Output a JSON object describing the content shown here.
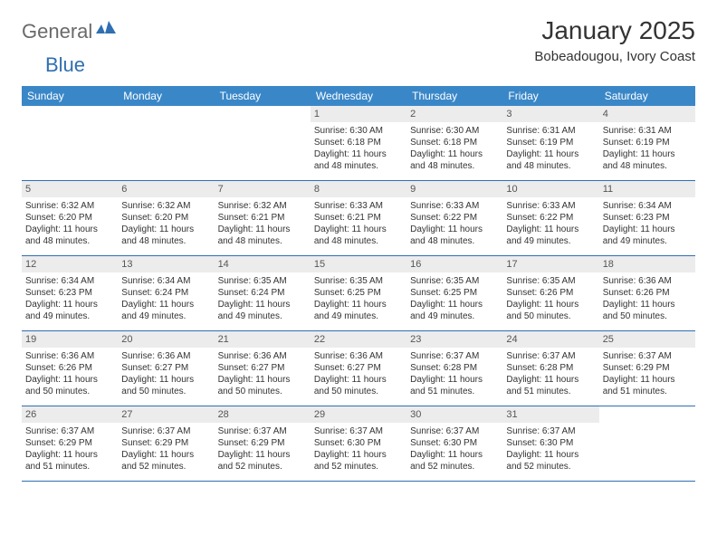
{
  "brand": {
    "part1": "General",
    "part2": "Blue"
  },
  "title": "January 2025",
  "location": "Bobeadougou, Ivory Coast",
  "colors": {
    "header_bg": "#3a87c8",
    "header_text": "#ffffff",
    "rule": "#2f6fb2",
    "daynum_bg": "#ececec",
    "text": "#333333",
    "brand_gray": "#6a6a6a",
    "brand_blue": "#2f6fb2"
  },
  "weekdays": [
    "Sunday",
    "Monday",
    "Tuesday",
    "Wednesday",
    "Thursday",
    "Friday",
    "Saturday"
  ],
  "weeks": [
    [
      {
        "n": "",
        "sunrise": "",
        "sunset": "",
        "daylight": ""
      },
      {
        "n": "",
        "sunrise": "",
        "sunset": "",
        "daylight": ""
      },
      {
        "n": "",
        "sunrise": "",
        "sunset": "",
        "daylight": ""
      },
      {
        "n": "1",
        "sunrise": "Sunrise: 6:30 AM",
        "sunset": "Sunset: 6:18 PM",
        "daylight": "Daylight: 11 hours and 48 minutes."
      },
      {
        "n": "2",
        "sunrise": "Sunrise: 6:30 AM",
        "sunset": "Sunset: 6:18 PM",
        "daylight": "Daylight: 11 hours and 48 minutes."
      },
      {
        "n": "3",
        "sunrise": "Sunrise: 6:31 AM",
        "sunset": "Sunset: 6:19 PM",
        "daylight": "Daylight: 11 hours and 48 minutes."
      },
      {
        "n": "4",
        "sunrise": "Sunrise: 6:31 AM",
        "sunset": "Sunset: 6:19 PM",
        "daylight": "Daylight: 11 hours and 48 minutes."
      }
    ],
    [
      {
        "n": "5",
        "sunrise": "Sunrise: 6:32 AM",
        "sunset": "Sunset: 6:20 PM",
        "daylight": "Daylight: 11 hours and 48 minutes."
      },
      {
        "n": "6",
        "sunrise": "Sunrise: 6:32 AM",
        "sunset": "Sunset: 6:20 PM",
        "daylight": "Daylight: 11 hours and 48 minutes."
      },
      {
        "n": "7",
        "sunrise": "Sunrise: 6:32 AM",
        "sunset": "Sunset: 6:21 PM",
        "daylight": "Daylight: 11 hours and 48 minutes."
      },
      {
        "n": "8",
        "sunrise": "Sunrise: 6:33 AM",
        "sunset": "Sunset: 6:21 PM",
        "daylight": "Daylight: 11 hours and 48 minutes."
      },
      {
        "n": "9",
        "sunrise": "Sunrise: 6:33 AM",
        "sunset": "Sunset: 6:22 PM",
        "daylight": "Daylight: 11 hours and 48 minutes."
      },
      {
        "n": "10",
        "sunrise": "Sunrise: 6:33 AM",
        "sunset": "Sunset: 6:22 PM",
        "daylight": "Daylight: 11 hours and 49 minutes."
      },
      {
        "n": "11",
        "sunrise": "Sunrise: 6:34 AM",
        "sunset": "Sunset: 6:23 PM",
        "daylight": "Daylight: 11 hours and 49 minutes."
      }
    ],
    [
      {
        "n": "12",
        "sunrise": "Sunrise: 6:34 AM",
        "sunset": "Sunset: 6:23 PM",
        "daylight": "Daylight: 11 hours and 49 minutes."
      },
      {
        "n": "13",
        "sunrise": "Sunrise: 6:34 AM",
        "sunset": "Sunset: 6:24 PM",
        "daylight": "Daylight: 11 hours and 49 minutes."
      },
      {
        "n": "14",
        "sunrise": "Sunrise: 6:35 AM",
        "sunset": "Sunset: 6:24 PM",
        "daylight": "Daylight: 11 hours and 49 minutes."
      },
      {
        "n": "15",
        "sunrise": "Sunrise: 6:35 AM",
        "sunset": "Sunset: 6:25 PM",
        "daylight": "Daylight: 11 hours and 49 minutes."
      },
      {
        "n": "16",
        "sunrise": "Sunrise: 6:35 AM",
        "sunset": "Sunset: 6:25 PM",
        "daylight": "Daylight: 11 hours and 49 minutes."
      },
      {
        "n": "17",
        "sunrise": "Sunrise: 6:35 AM",
        "sunset": "Sunset: 6:26 PM",
        "daylight": "Daylight: 11 hours and 50 minutes."
      },
      {
        "n": "18",
        "sunrise": "Sunrise: 6:36 AM",
        "sunset": "Sunset: 6:26 PM",
        "daylight": "Daylight: 11 hours and 50 minutes."
      }
    ],
    [
      {
        "n": "19",
        "sunrise": "Sunrise: 6:36 AM",
        "sunset": "Sunset: 6:26 PM",
        "daylight": "Daylight: 11 hours and 50 minutes."
      },
      {
        "n": "20",
        "sunrise": "Sunrise: 6:36 AM",
        "sunset": "Sunset: 6:27 PM",
        "daylight": "Daylight: 11 hours and 50 minutes."
      },
      {
        "n": "21",
        "sunrise": "Sunrise: 6:36 AM",
        "sunset": "Sunset: 6:27 PM",
        "daylight": "Daylight: 11 hours and 50 minutes."
      },
      {
        "n": "22",
        "sunrise": "Sunrise: 6:36 AM",
        "sunset": "Sunset: 6:27 PM",
        "daylight": "Daylight: 11 hours and 50 minutes."
      },
      {
        "n": "23",
        "sunrise": "Sunrise: 6:37 AM",
        "sunset": "Sunset: 6:28 PM",
        "daylight": "Daylight: 11 hours and 51 minutes."
      },
      {
        "n": "24",
        "sunrise": "Sunrise: 6:37 AM",
        "sunset": "Sunset: 6:28 PM",
        "daylight": "Daylight: 11 hours and 51 minutes."
      },
      {
        "n": "25",
        "sunrise": "Sunrise: 6:37 AM",
        "sunset": "Sunset: 6:29 PM",
        "daylight": "Daylight: 11 hours and 51 minutes."
      }
    ],
    [
      {
        "n": "26",
        "sunrise": "Sunrise: 6:37 AM",
        "sunset": "Sunset: 6:29 PM",
        "daylight": "Daylight: 11 hours and 51 minutes."
      },
      {
        "n": "27",
        "sunrise": "Sunrise: 6:37 AM",
        "sunset": "Sunset: 6:29 PM",
        "daylight": "Daylight: 11 hours and 52 minutes."
      },
      {
        "n": "28",
        "sunrise": "Sunrise: 6:37 AM",
        "sunset": "Sunset: 6:29 PM",
        "daylight": "Daylight: 11 hours and 52 minutes."
      },
      {
        "n": "29",
        "sunrise": "Sunrise: 6:37 AM",
        "sunset": "Sunset: 6:30 PM",
        "daylight": "Daylight: 11 hours and 52 minutes."
      },
      {
        "n": "30",
        "sunrise": "Sunrise: 6:37 AM",
        "sunset": "Sunset: 6:30 PM",
        "daylight": "Daylight: 11 hours and 52 minutes."
      },
      {
        "n": "31",
        "sunrise": "Sunrise: 6:37 AM",
        "sunset": "Sunset: 6:30 PM",
        "daylight": "Daylight: 11 hours and 52 minutes."
      },
      {
        "n": "",
        "sunrise": "",
        "sunset": "",
        "daylight": ""
      }
    ]
  ]
}
